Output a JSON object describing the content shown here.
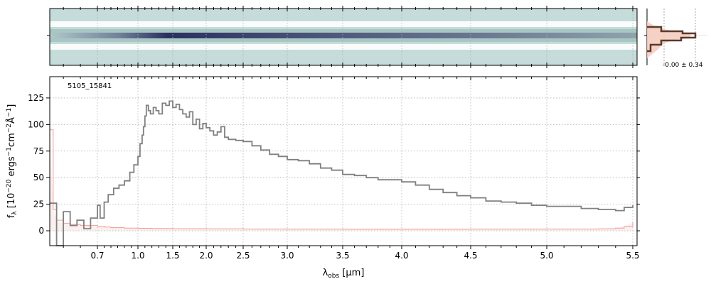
{
  "chart_data": {
    "type": "line",
    "object_id": "5105_15841",
    "xlabel_main": "λ",
    "xlabel_sub": "obs",
    "xlabel_unit": " [μm]",
    "ylabel": "f_λ [10^-20 ergs^-1cm^-2Å^-1]",
    "ylabel_parts": {
      "f": "f",
      "fsub": "λ",
      "a": " [10",
      "e1": "−20",
      "b": " ergs",
      "e2": "−1",
      "c": "cm",
      "e3": "−2",
      "d": "Å",
      "e4": "−1",
      "e": "]"
    },
    "x_ticks": [
      "0.7",
      "1.0",
      "1.5",
      "2.0",
      "2.5",
      "3.0",
      "3.5",
      "4.0",
      "4.5",
      "5.0",
      "5.5"
    ],
    "y_ticks": [
      0,
      25,
      50,
      75,
      100,
      125
    ],
    "ylim": [
      -14,
      145
    ],
    "xlim": [
      0.56,
      5.52
    ],
    "grid": true,
    "series": [
      {
        "color": "#808080",
        "step": true,
        "x": [
          0.56,
          0.58,
          0.6,
          0.62,
          0.64,
          0.66,
          0.68,
          0.7,
          0.72,
          0.75,
          0.78,
          0.82,
          0.86,
          0.9,
          0.94,
          0.97,
          1.0,
          1.03,
          1.06,
          1.08,
          1.1,
          1.12,
          1.15,
          1.18,
          1.22,
          1.26,
          1.3,
          1.35,
          1.4,
          1.45,
          1.5,
          1.55,
          1.6,
          1.65,
          1.7,
          1.75,
          1.8,
          1.85,
          1.9,
          1.95,
          2.0,
          2.05,
          2.1,
          2.15,
          2.2,
          2.25,
          2.3,
          2.4,
          2.5,
          2.6,
          2.7,
          2.8,
          2.9,
          3.0,
          3.1,
          3.2,
          3.3,
          3.4,
          3.5,
          3.6,
          3.7,
          3.8,
          3.9,
          4.0,
          4.1,
          4.2,
          4.3,
          4.4,
          4.5,
          4.6,
          4.7,
          4.8,
          4.9,
          5.0,
          5.1,
          5.2,
          5.3,
          5.4,
          5.45,
          5.5
        ],
        "y": [
          26,
          -14,
          18,
          5,
          10,
          2,
          12,
          24,
          12,
          27,
          34,
          40,
          43,
          47,
          55,
          62,
          70,
          82,
          90,
          98,
          108,
          118,
          113,
          110,
          116,
          113,
          110,
          120,
          118,
          122,
          116,
          119,
          114,
          110,
          107,
          112,
          100,
          105,
          96,
          101,
          97,
          94,
          90,
          93,
          98,
          88,
          86,
          85,
          84,
          80,
          76,
          72,
          70,
          67,
          66,
          63,
          59,
          57,
          53,
          52,
          50,
          48,
          48,
          46,
          43,
          39,
          36,
          33,
          31,
          28,
          27,
          26,
          24,
          23,
          23,
          21,
          20,
          19,
          22,
          24
        ]
      },
      {
        "color": "#f08080",
        "step": true,
        "x": [
          0.56,
          0.57,
          0.58,
          0.6,
          0.62,
          0.65,
          0.7,
          0.75,
          0.8,
          0.9,
          1.0,
          1.2,
          1.5,
          2.0,
          2.5,
          3.0,
          3.5,
          4.0,
          4.5,
          5.0,
          5.3,
          5.4,
          5.45,
          5.5
        ],
        "y": [
          95,
          20,
          10,
          7,
          6,
          5,
          4,
          3.5,
          3,
          2.6,
          2.4,
          2.2,
          2.0,
          1.8,
          1.6,
          1.5,
          1.4,
          1.4,
          1.5,
          1.6,
          1.8,
          2.5,
          4,
          8
        ]
      }
    ],
    "spectrum2d_offset_label": "-0.00 ± 0.34"
  }
}
